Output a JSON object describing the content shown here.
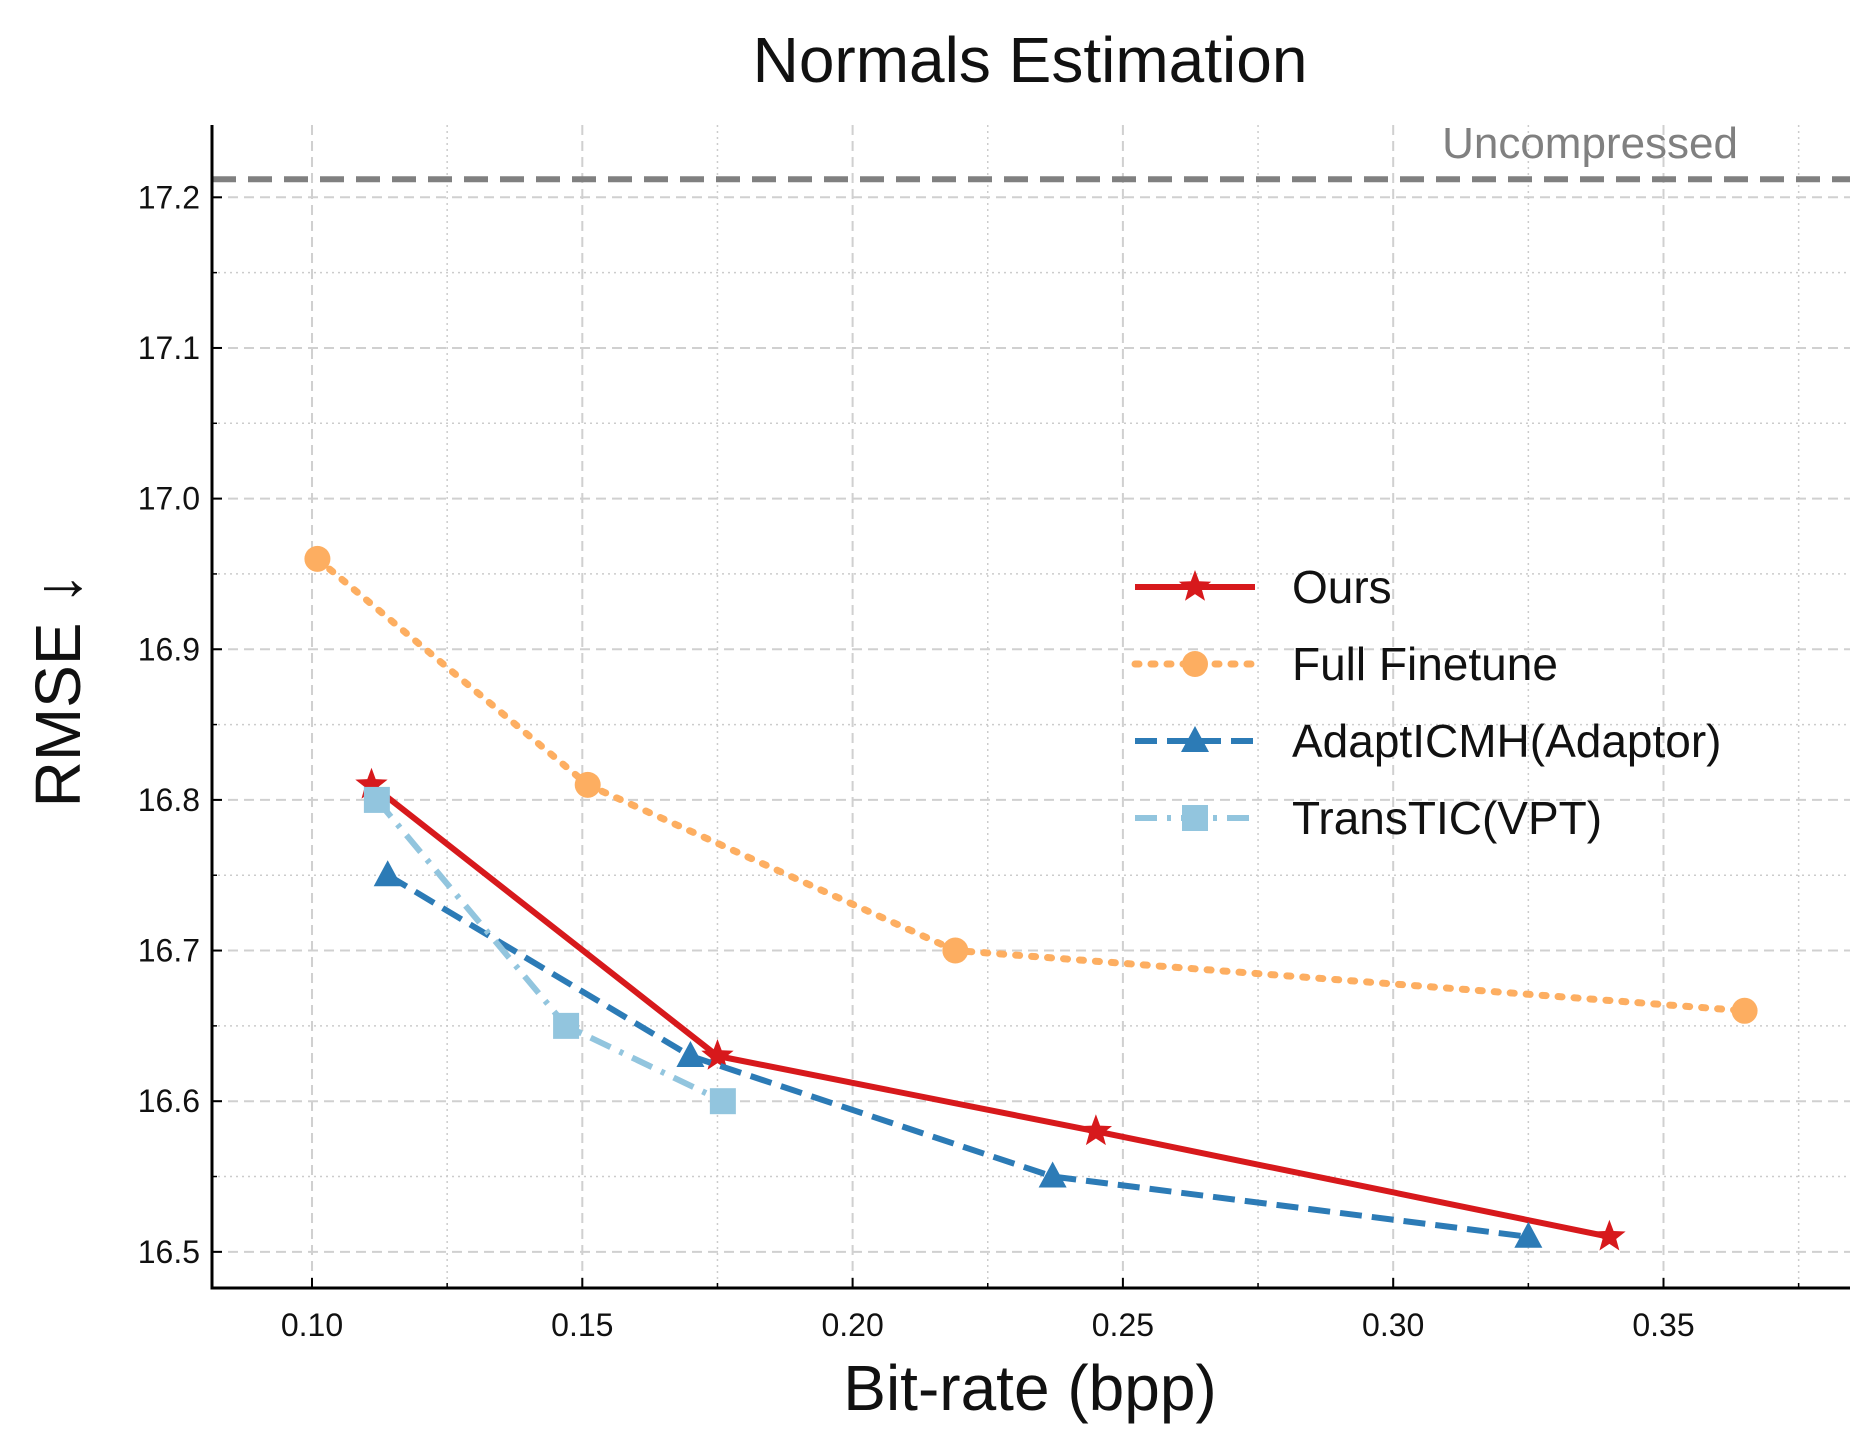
{
  "chart_data": {
    "type": "line",
    "title": "Normals Estimation",
    "xlabel": "Bit-rate (bpp)",
    "ylabel": "RMSE ↓",
    "xlim": [
      0.0815,
      0.3845
    ],
    "ylim": [
      16.476,
      17.248
    ],
    "xticks": [
      0.1,
      0.15,
      0.2,
      0.25,
      0.3,
      0.35
    ],
    "xtick_labels": [
      "0.10",
      "0.15",
      "0.20",
      "0.25",
      "0.30",
      "0.35"
    ],
    "yticks": [
      16.5,
      16.6,
      16.7,
      16.8,
      16.9,
      17.0,
      17.1,
      17.2
    ],
    "ytick_labels": [
      "16.5",
      "16.6",
      "16.7",
      "16.8",
      "16.9",
      "17.0",
      "17.1",
      "17.2"
    ],
    "grid": true,
    "legend_position": "center-right",
    "reference_line": {
      "label": "Uncompressed",
      "y": 17.212,
      "color": "#808080"
    },
    "series": [
      {
        "name": "Ours",
        "color": "#d7191c",
        "marker": "star",
        "dash": "solid",
        "x": [
          0.111,
          0.175,
          0.245,
          0.34
        ],
        "y": [
          16.81,
          16.63,
          16.58,
          16.51
        ]
      },
      {
        "name": "Full Finetune",
        "color": "#fdae61",
        "marker": "circle",
        "dash": "dotted",
        "x": [
          0.101,
          0.151,
          0.219,
          0.365
        ],
        "y": [
          16.96,
          16.81,
          16.7,
          16.66
        ]
      },
      {
        "name": "AdaptICMH(Adaptor)",
        "color": "#2c7bb6",
        "marker": "triangle",
        "dash": "dashed",
        "x": [
          0.114,
          0.17,
          0.237,
          0.325
        ],
        "y": [
          16.75,
          16.63,
          16.55,
          16.51
        ]
      },
      {
        "name": "TransTIC(VPT)",
        "color": "#92c5de",
        "marker": "square",
        "dash": "dashdot",
        "x": [
          0.112,
          0.147,
          0.176
        ],
        "y": [
          16.8,
          16.65,
          16.6
        ]
      }
    ]
  }
}
